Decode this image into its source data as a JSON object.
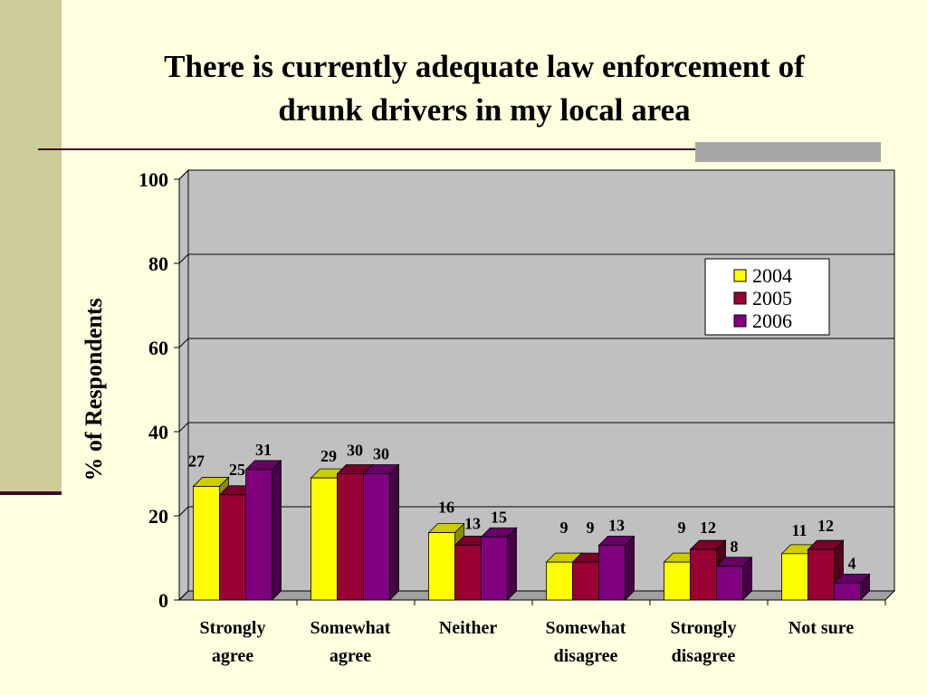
{
  "slide": {
    "title_line1": "There is currently adequate law enforcement of",
    "title_line2": "drunk drivers in my local area"
  },
  "chart_data": {
    "type": "bar",
    "title": "There is currently adequate law enforcement of drunk drivers in my local area",
    "xlabel": "",
    "ylabel": "% of Respondents",
    "ylim": [
      0,
      100
    ],
    "yticks": [
      0,
      20,
      40,
      60,
      80,
      100
    ],
    "grid": true,
    "legend_position": "top-right",
    "categories": [
      [
        "Strongly",
        "agree"
      ],
      [
        "Somewhat",
        "agree"
      ],
      [
        "Neither"
      ],
      [
        "Somewhat",
        "disagree"
      ],
      [
        "Strongly",
        "disagree"
      ],
      [
        "Not sure"
      ]
    ],
    "series": [
      {
        "name": "2004",
        "color": "#FFFF00",
        "values": [
          27,
          29,
          16,
          9,
          9,
          11
        ]
      },
      {
        "name": "2005",
        "color": "#990033",
        "values": [
          25,
          30,
          13,
          9,
          12,
          12
        ]
      },
      {
        "name": "2006",
        "color": "#800080",
        "values": [
          31,
          30,
          15,
          13,
          8,
          4
        ]
      }
    ]
  }
}
